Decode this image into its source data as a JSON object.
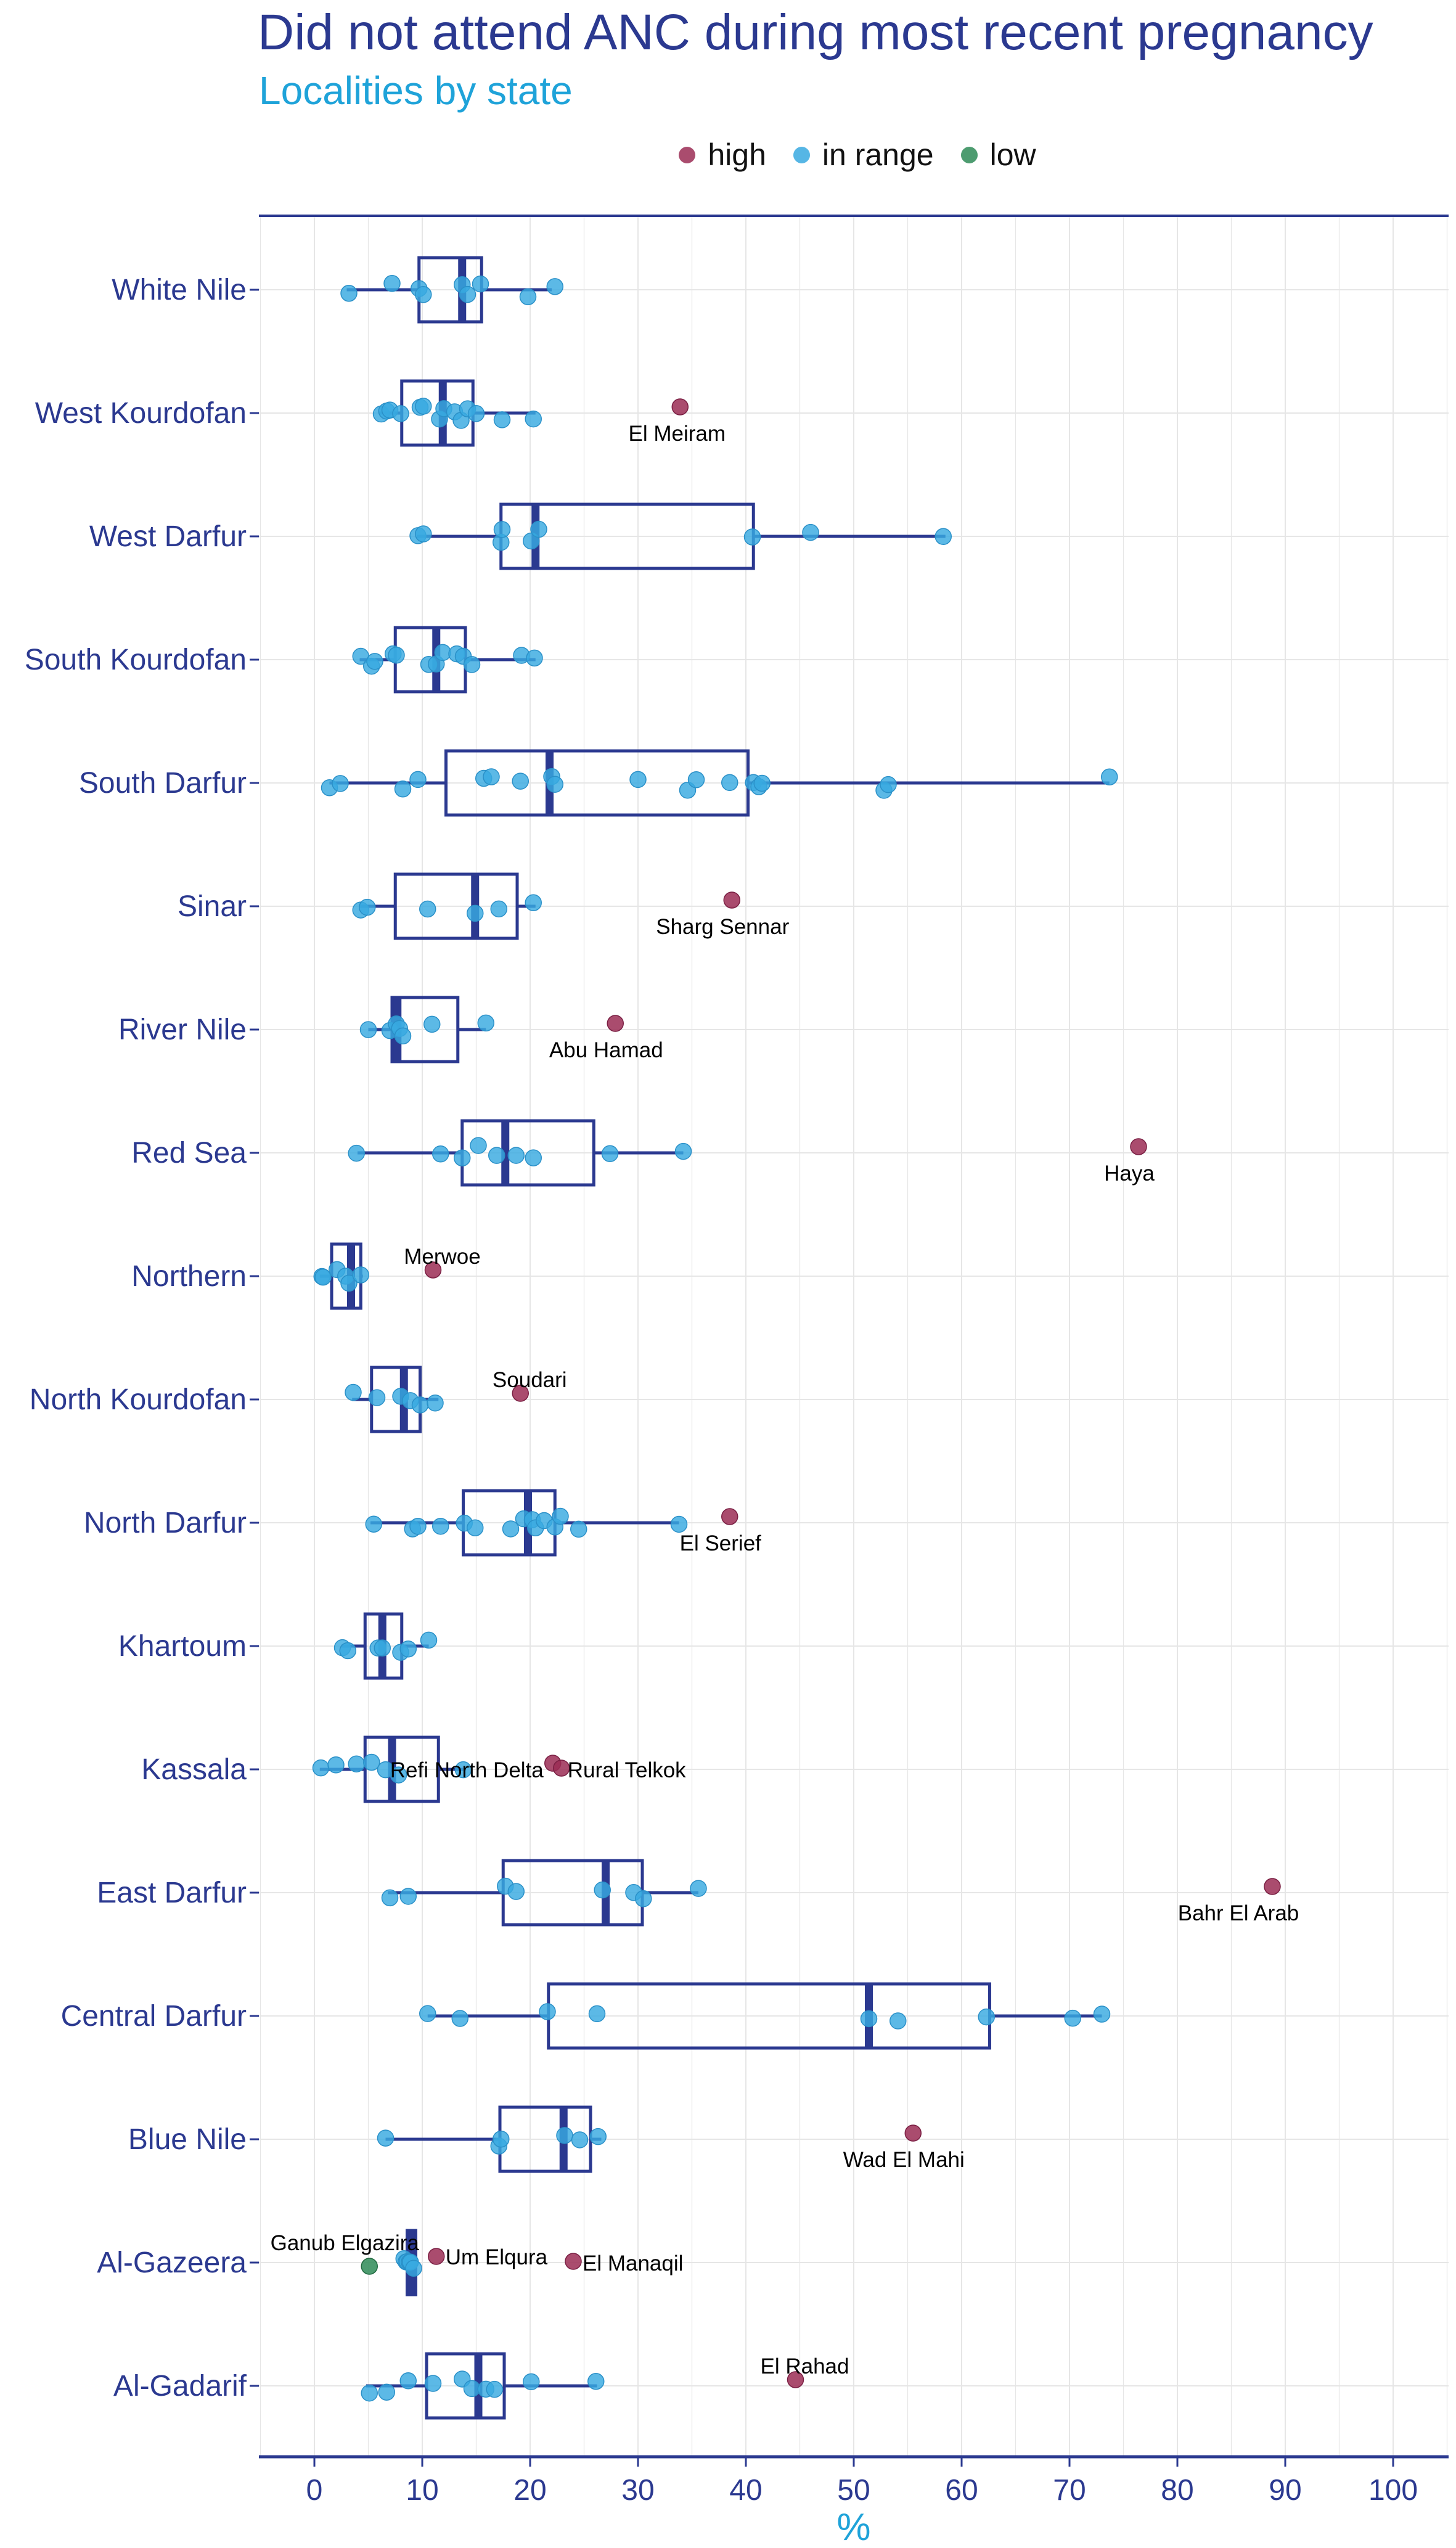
{
  "chart_data": {
    "type": "boxplot",
    "title": "Did not attend ANC during most recent pregnancy",
    "subtitle": "Localities by state",
    "xlabel": "%",
    "xlim": [
      -5,
      105
    ],
    "xticks": [
      0,
      10,
      20,
      30,
      40,
      50,
      60,
      70,
      80,
      90,
      100
    ],
    "grid": true,
    "legend": {
      "position": "top",
      "entries": [
        {
          "key": "high",
          "label": "high",
          "color": "#9b2d55"
        },
        {
          "key": "in",
          "label": "in range",
          "color": "#38a9e0"
        },
        {
          "key": "low",
          "label": "low",
          "color": "#2e8b57"
        }
      ]
    },
    "colors": {
      "box": "#2b3990",
      "grid": "#e6e6e6",
      "axis": "#2b3990"
    },
    "states": [
      {
        "name": "White Nile",
        "box": {
          "lower": 3.0,
          "q1": 9.7,
          "median": 13.7,
          "q3": 15.5,
          "upper": 22.0
        },
        "points": [
          3.2,
          7.2,
          9.7,
          10.1,
          13.7,
          14.2,
          15.4,
          19.8,
          22.3
        ]
      },
      {
        "name": "West Kourdofan",
        "box": {
          "lower": 6.0,
          "q1": 8.1,
          "median": 11.9,
          "q3": 14.7,
          "upper": 20.5
        },
        "points": [
          6.2,
          6.7,
          7.0,
          8.0,
          9.8,
          10.1,
          11.6,
          12.0,
          13.0,
          13.6,
          14.2,
          15.0,
          17.4,
          20.3
        ],
        "outliers": [
          {
            "value": 33.9,
            "label": "El Meiram"
          }
        ]
      },
      {
        "name": "West Darfur",
        "box": {
          "lower": 9.5,
          "q1": 17.3,
          "median": 20.5,
          "q3": 40.7,
          "upper": 58.5
        },
        "points": [
          9.6,
          10.1,
          17.3,
          17.4,
          20.1,
          20.8,
          40.6,
          46.0,
          58.3
        ]
      },
      {
        "name": "South Kourdofan",
        "box": {
          "lower": 4.2,
          "q1": 7.5,
          "median": 11.3,
          "q3": 14.0,
          "upper": 20.5
        },
        "points": [
          4.3,
          5.3,
          5.6,
          7.3,
          7.6,
          10.6,
          11.3,
          11.9,
          13.2,
          13.8,
          14.6,
          19.2,
          20.4
        ]
      },
      {
        "name": "South Darfur",
        "box": {
          "lower": 1.4,
          "q1": 12.2,
          "median": 21.8,
          "q3": 40.2,
          "upper": 73.7
        },
        "points": [
          1.4,
          2.4,
          8.2,
          9.6,
          15.7,
          16.4,
          19.1,
          22.0,
          22.3,
          30.0,
          34.6,
          35.4,
          38.5,
          40.7,
          41.2,
          41.5,
          52.8,
          53.2,
          73.7
        ]
      },
      {
        "name": "Sinar",
        "box": {
          "lower": 4.2,
          "q1": 7.5,
          "median": 14.9,
          "q3": 18.8,
          "upper": 20.5
        },
        "points": [
          4.3,
          4.9,
          10.5,
          14.9,
          17.1,
          20.3
        ],
        "outliers": [
          {
            "value": 38.7,
            "label": "Sharg Sennar"
          }
        ]
      },
      {
        "name": "River Nile",
        "box": {
          "lower": 5.0,
          "q1": 7.2,
          "median": 7.7,
          "q3": 13.3,
          "upper": 15.9
        },
        "points": [
          5.0,
          7.0,
          7.6,
          7.9,
          8.2,
          10.9,
          15.9
        ],
        "outliers": [
          {
            "value": 27.9,
            "label": "Abu Hamad"
          }
        ]
      },
      {
        "name": "Red Sea",
        "box": {
          "lower": 4.0,
          "q1": 13.7,
          "median": 17.7,
          "q3": 25.9,
          "upper": 34.2
        },
        "points": [
          3.9,
          11.7,
          13.7,
          15.2,
          16.9,
          18.7,
          20.3,
          27.4,
          34.2
        ],
        "outliers": [
          {
            "value": 76.4,
            "label": "Haya"
          }
        ]
      },
      {
        "name": "Northern",
        "box": {
          "lower": 0.5,
          "q1": 1.6,
          "median": 3.4,
          "q3": 4.3,
          "upper": 4.5
        },
        "points": [
          0.7,
          0.8,
          2.1,
          2.9,
          3.2,
          4.3
        ],
        "outliers": [
          {
            "value": 11.0,
            "label": "Merwoe"
          }
        ]
      },
      {
        "name": "North Kourdofan",
        "box": {
          "lower": 3.5,
          "q1": 5.3,
          "median": 8.3,
          "q3": 9.8,
          "upper": 11.5
        },
        "points": [
          3.6,
          5.8,
          8.0,
          8.9,
          9.8,
          11.2
        ],
        "outliers": [
          {
            "value": 19.1,
            "label": "Soudari"
          }
        ]
      },
      {
        "name": "North Darfur",
        "box": {
          "lower": 5.2,
          "q1": 13.8,
          "median": 19.8,
          "q3": 22.3,
          "upper": 33.8
        },
        "points": [
          5.5,
          9.1,
          9.6,
          11.7,
          13.9,
          14.9,
          18.2,
          19.4,
          20.2,
          20.5,
          21.3,
          22.3,
          22.8,
          24.5,
          33.8
        ],
        "outliers": [
          {
            "value": 38.5,
            "label": "El Serief"
          }
        ]
      },
      {
        "name": "Khartoum",
        "box": {
          "lower": 2.5,
          "q1": 4.7,
          "median": 6.3,
          "q3": 8.1,
          "upper": 10.6
        },
        "points": [
          2.6,
          3.1,
          5.9,
          6.3,
          8.0,
          8.7,
          10.6
        ]
      },
      {
        "name": "Kassala",
        "box": {
          "lower": 0.5,
          "q1": 4.7,
          "median": 7.2,
          "q3": 11.5,
          "upper": 13.8
        },
        "points": [
          0.6,
          2.0,
          3.9,
          5.3,
          6.6,
          7.8,
          13.8
        ],
        "outliers": [
          {
            "value": 22.1,
            "label": "Refi North Delta"
          },
          {
            "value": 22.9,
            "label": "Rural Telkok"
          }
        ]
      },
      {
        "name": "East Darfur",
        "box": {
          "lower": 6.8,
          "q1": 17.5,
          "median": 27.0,
          "q3": 30.4,
          "upper": 35.6
        },
        "points": [
          7.0,
          8.7,
          17.7,
          18.7,
          26.7,
          29.6,
          30.5,
          35.6
        ],
        "outliers": [
          {
            "value": 88.8,
            "label": "Bahr El Arab"
          }
        ]
      },
      {
        "name": "Central Darfur",
        "box": {
          "lower": 10.5,
          "q1": 21.7,
          "median": 51.4,
          "q3": 62.6,
          "upper": 73.0
        },
        "points": [
          10.5,
          13.5,
          21.6,
          26.2,
          51.4,
          54.1,
          62.3,
          70.3,
          73.0
        ]
      },
      {
        "name": "Blue Nile",
        "box": {
          "lower": 6.6,
          "q1": 17.2,
          "median": 23.1,
          "q3": 25.6,
          "upper": 26.6
        },
        "points": [
          6.6,
          17.1,
          17.3,
          23.2,
          24.6,
          26.3
        ],
        "outliers": [
          {
            "value": 55.5,
            "label": "Wad El Mahi"
          }
        ]
      },
      {
        "name": "Al-Gazeera",
        "box": {
          "lower": 8.4,
          "q1": 8.6,
          "median": 8.9,
          "q3": 9.4,
          "upper": 9.6
        },
        "points": [
          8.3,
          8.5,
          8.6,
          8.8,
          8.9,
          9.2
        ],
        "outliers": [
          {
            "value": 11.3,
            "label": "Um Elqura"
          },
          {
            "value": 24.0,
            "label": "El Manaqil"
          }
        ],
        "low_outliers": [
          {
            "value": 5.1,
            "label": "Ganub Elgazira"
          }
        ]
      },
      {
        "name": "Al-Gadarif",
        "box": {
          "lower": 4.8,
          "q1": 10.4,
          "median": 15.2,
          "q3": 17.6,
          "upper": 26.2
        },
        "points": [
          5.1,
          6.7,
          8.7,
          11.0,
          13.7,
          14.6,
          15.9,
          16.7,
          20.1,
          26.1
        ],
        "outliers": [
          {
            "value": 44.6,
            "label": "El Rahad"
          }
        ]
      }
    ]
  }
}
